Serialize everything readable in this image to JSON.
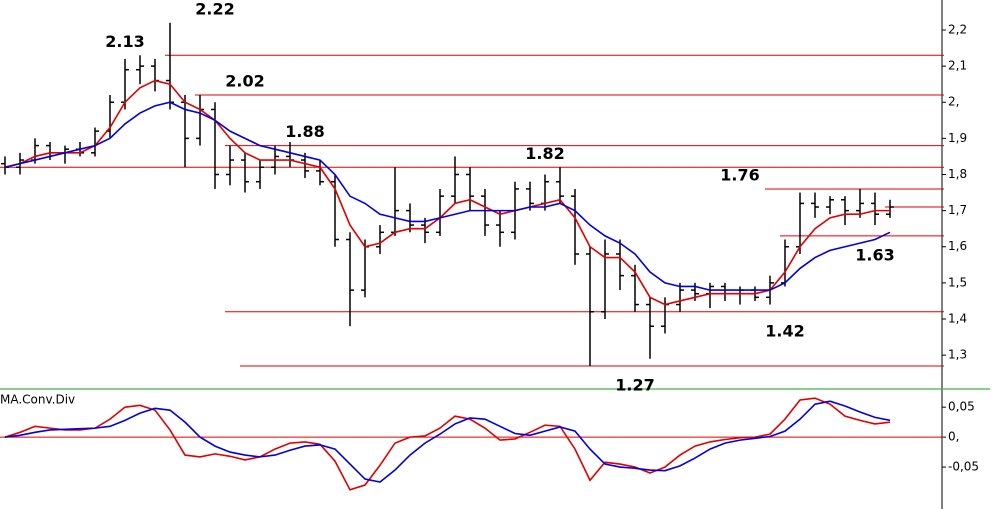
{
  "chart_data": [
    {
      "type": "ohlc",
      "color": "#000000",
      "open": [
        1.83,
        1.82,
        1.84,
        1.88,
        1.86,
        1.87,
        1.86,
        1.92,
        2.0,
        2.09,
        2.1,
        2.06,
        2.0,
        1.9,
        1.98,
        1.8,
        1.84,
        1.78,
        1.82,
        1.85,
        1.84,
        1.81,
        1.78,
        1.62,
        1.48,
        1.6,
        1.64,
        1.7,
        1.66,
        1.64,
        1.74,
        1.8,
        1.74,
        1.66,
        1.64,
        1.76,
        1.72,
        1.78,
        1.74,
        1.58,
        1.42,
        1.58,
        1.52,
        1.44,
        1.38,
        1.44,
        1.48,
        1.47,
        1.49,
        1.47,
        1.48,
        1.46,
        1.5,
        1.6,
        1.72,
        1.71,
        1.73,
        1.7,
        1.72,
        1.69
      ],
      "high": [
        1.85,
        1.86,
        1.9,
        1.89,
        1.88,
        1.89,
        1.93,
        2.02,
        2.12,
        2.13,
        2.12,
        2.22,
        2.02,
        2.02,
        2.0,
        1.88,
        1.86,
        1.84,
        1.88,
        1.89,
        1.86,
        1.84,
        1.8,
        1.64,
        1.62,
        1.66,
        1.82,
        1.72,
        1.68,
        1.76,
        1.85,
        1.82,
        1.76,
        1.7,
        1.78,
        1.78,
        1.8,
        1.82,
        1.76,
        1.6,
        1.62,
        1.62,
        1.55,
        1.46,
        1.46,
        1.5,
        1.5,
        1.5,
        1.5,
        1.49,
        1.49,
        1.52,
        1.62,
        1.75,
        1.75,
        1.74,
        1.74,
        1.76,
        1.75,
        1.73
      ],
      "low": [
        1.8,
        1.8,
        1.83,
        1.84,
        1.83,
        1.85,
        1.85,
        1.9,
        1.98,
        2.05,
        2.03,
        1.98,
        1.82,
        1.88,
        1.76,
        1.77,
        1.75,
        1.76,
        1.8,
        1.82,
        1.79,
        1.77,
        1.6,
        1.38,
        1.46,
        1.58,
        1.63,
        1.64,
        1.61,
        1.63,
        1.72,
        1.7,
        1.63,
        1.6,
        1.62,
        1.7,
        1.7,
        1.72,
        1.55,
        1.27,
        1.4,
        1.48,
        1.42,
        1.29,
        1.36,
        1.42,
        1.45,
        1.43,
        1.45,
        1.44,
        1.45,
        1.44,
        1.49,
        1.58,
        1.68,
        1.69,
        1.66,
        1.68,
        1.66,
        1.68
      ],
      "close": [
        1.82,
        1.84,
        1.88,
        1.86,
        1.87,
        1.86,
        1.92,
        2.0,
        2.09,
        2.1,
        2.06,
        2.0,
        1.9,
        1.98,
        1.8,
        1.84,
        1.78,
        1.82,
        1.85,
        1.84,
        1.81,
        1.78,
        1.62,
        1.48,
        1.6,
        1.64,
        1.7,
        1.66,
        1.64,
        1.74,
        1.8,
        1.74,
        1.66,
        1.64,
        1.76,
        1.72,
        1.78,
        1.74,
        1.58,
        1.42,
        1.58,
        1.52,
        1.44,
        1.38,
        1.44,
        1.48,
        1.47,
        1.49,
        1.47,
        1.48,
        1.46,
        1.5,
        1.6,
        1.72,
        1.71,
        1.73,
        1.7,
        1.72,
        1.69,
        1.71
      ],
      "series": [
        {
          "color": "#e00000",
          "values": [
            1.82,
            1.83,
            1.85,
            1.86,
            1.86,
            1.86,
            1.88,
            1.93,
            2.0,
            2.04,
            2.06,
            2.05,
            2.0,
            1.98,
            1.95,
            1.9,
            1.86,
            1.84,
            1.84,
            1.84,
            1.83,
            1.82,
            1.76,
            1.66,
            1.6,
            1.61,
            1.64,
            1.65,
            1.65,
            1.68,
            1.72,
            1.73,
            1.71,
            1.69,
            1.7,
            1.71,
            1.72,
            1.73,
            1.68,
            1.6,
            1.57,
            1.57,
            1.53,
            1.46,
            1.44,
            1.45,
            1.46,
            1.47,
            1.47,
            1.47,
            1.47,
            1.48,
            1.53,
            1.6,
            1.65,
            1.68,
            1.69,
            1.69,
            1.7,
            1.7
          ]
        },
        {
          "color": "#0000e0",
          "values": [
            1.82,
            1.83,
            1.84,
            1.85,
            1.86,
            1.87,
            1.88,
            1.9,
            1.94,
            1.97,
            1.99,
            2.0,
            1.98,
            1.97,
            1.95,
            1.92,
            1.9,
            1.88,
            1.87,
            1.86,
            1.85,
            1.84,
            1.8,
            1.74,
            1.72,
            1.69,
            1.68,
            1.67,
            1.67,
            1.68,
            1.69,
            1.7,
            1.7,
            1.7,
            1.7,
            1.71,
            1.71,
            1.72,
            1.7,
            1.66,
            1.63,
            1.61,
            1.58,
            1.53,
            1.5,
            1.49,
            1.49,
            1.48,
            1.48,
            1.48,
            1.48,
            1.48,
            1.5,
            1.54,
            1.57,
            1.59,
            1.6,
            1.61,
            1.62,
            1.64
          ]
        }
      ],
      "levels": [
        {
          "value": 2.22,
          "label": "2.22",
          "at": 14
        },
        {
          "value": 2.13,
          "label": "2.13",
          "at": 8,
          "start": 11
        },
        {
          "value": 2.02,
          "label": "2.02",
          "at": 16,
          "start": 13
        },
        {
          "value": 1.88,
          "label": "1.88",
          "at": 20,
          "start": 15
        },
        {
          "value": 1.82,
          "label": "1.82",
          "at": 36,
          "start": 0
        },
        {
          "value": 1.76,
          "label": "1.76",
          "at": 49,
          "start": 51
        },
        {
          "value": 1.71,
          "start": 59
        },
        {
          "value": 1.63,
          "label": "1.63",
          "at": 58,
          "start": 52
        },
        {
          "value": 1.42,
          "label": "1.42",
          "at": 52,
          "start": 15
        },
        {
          "value": 1.27,
          "label": "1.27",
          "at": 42,
          "start": 16
        }
      ],
      "level_color": "#e00000",
      "ylim": [
        1.209,
        2.283
      ],
      "yticks": [
        {
          "value": 2.2,
          "label": "2,2"
        },
        {
          "value": 2.1,
          "label": "2,1"
        },
        {
          "value": 2.0,
          "label": "2,"
        },
        {
          "value": 1.9,
          "label": "1,9"
        },
        {
          "value": 1.8,
          "label": "1,8"
        },
        {
          "value": 1.7,
          "label": "1,7"
        },
        {
          "value": 1.6,
          "label": "1,6"
        },
        {
          "value": 1.5,
          "label": "1,5"
        },
        {
          "value": 1.4,
          "label": "1,4"
        },
        {
          "value": 1.3,
          "label": "1,3"
        }
      ]
    },
    {
      "type": "line",
      "title": "MA.Conv.Div",
      "series": [
        {
          "color": "#e00000",
          "values": [
            0,
            0.008,
            0.018,
            0.015,
            0.012,
            0.012,
            0.015,
            0.03,
            0.05,
            0.053,
            0.045,
            0.012,
            -0.03,
            -0.033,
            -0.028,
            -0.032,
            -0.038,
            -0.033,
            -0.02,
            -0.01,
            -0.008,
            -0.012,
            -0.04,
            -0.088,
            -0.08,
            -0.047,
            -0.01,
            0.0,
            0.002,
            0.015,
            0.035,
            0.03,
            0.015,
            -0.005,
            -0.003,
            0.008,
            0.02,
            0.018,
            -0.02,
            -0.072,
            -0.042,
            -0.045,
            -0.05,
            -0.06,
            -0.05,
            -0.03,
            -0.015,
            -0.008,
            -0.004,
            -0.001,
            0.0,
            0.005,
            0.03,
            0.062,
            0.065,
            0.055,
            0.035,
            0.028,
            0.022,
            0.025
          ]
        },
        {
          "color": "#0000e0",
          "values": [
            0,
            0.003,
            0.008,
            0.012,
            0.013,
            0.014,
            0.015,
            0.018,
            0.028,
            0.04,
            0.048,
            0.045,
            0.025,
            0.0,
            -0.015,
            -0.025,
            -0.03,
            -0.033,
            -0.03,
            -0.022,
            -0.015,
            -0.013,
            -0.02,
            -0.045,
            -0.07,
            -0.075,
            -0.055,
            -0.03,
            -0.01,
            0.005,
            0.022,
            0.032,
            0.03,
            0.018,
            0.006,
            0.003,
            0.01,
            0.017,
            0.01,
            -0.02,
            -0.045,
            -0.05,
            -0.052,
            -0.055,
            -0.056,
            -0.048,
            -0.035,
            -0.02,
            -0.01,
            -0.005,
            -0.002,
            0.001,
            0.01,
            0.03,
            0.055,
            0.06,
            0.052,
            0.042,
            0.033,
            0.028
          ]
        }
      ],
      "levels": [
        {
          "value": 0,
          "start": 0
        }
      ],
      "level_color": "#e00000",
      "ylim": [
        -0.105,
        0.077
      ],
      "yticks": [
        {
          "value": 0.05,
          "label": "0,05"
        },
        {
          "value": 0,
          "label": "0,"
        },
        {
          "value": -0.05,
          "label": "-0,05"
        }
      ]
    }
  ]
}
